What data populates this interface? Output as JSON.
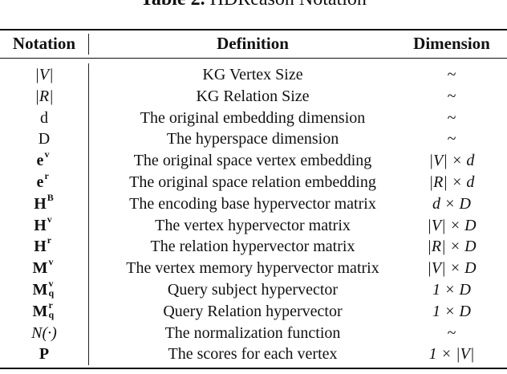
{
  "caption": {
    "label": "Table 2.",
    "text": "HDReason Notation"
  },
  "headers": [
    "Notation",
    "Definition",
    "Dimension"
  ],
  "rows": [
    {
      "notation": {
        "base": "|V|",
        "sup": "",
        "sub": "",
        "style": "italic"
      },
      "definition": "KG Vertex Size",
      "dimension": "~"
    },
    {
      "notation": {
        "base": "|R|",
        "sup": "",
        "sub": "",
        "style": "italic"
      },
      "definition": "KG Relation Size",
      "dimension": "~"
    },
    {
      "notation": {
        "base": "d",
        "sup": "",
        "sub": "",
        "style": "normal"
      },
      "definition": "The original embedding dimension",
      "dimension": "~"
    },
    {
      "notation": {
        "base": "D",
        "sup": "",
        "sub": "",
        "style": "normal"
      },
      "definition": "The hyperspace dimension",
      "dimension": "~"
    },
    {
      "notation": {
        "base": "e",
        "sup": "v",
        "sub": "",
        "style": "bold"
      },
      "definition": "The original space vertex embedding",
      "dimension": "|V| × d"
    },
    {
      "notation": {
        "base": "e",
        "sup": "r",
        "sub": "",
        "style": "bold"
      },
      "definition": "The original space relation embedding",
      "dimension": "|R| × d"
    },
    {
      "notation": {
        "base": "H",
        "sup": "B",
        "sub": "",
        "style": "bold"
      },
      "definition": "The encoding base hypervector matrix",
      "dimension": "d × D"
    },
    {
      "notation": {
        "base": "H",
        "sup": "v",
        "sub": "",
        "style": "bold"
      },
      "definition": "The vertex hypervector matrix",
      "dimension": "|V| × D"
    },
    {
      "notation": {
        "base": "H",
        "sup": "r",
        "sub": "",
        "style": "bold"
      },
      "definition": "The relation hypervector matrix",
      "dimension": "|R| × D"
    },
    {
      "notation": {
        "base": "M",
        "sup": "v",
        "sub": "",
        "style": "bold"
      },
      "definition": "The vertex memory hypervector matrix",
      "dimension": "|V| × D"
    },
    {
      "notation": {
        "base": "M",
        "sup": "v",
        "sub": "q",
        "style": "bold"
      },
      "definition": "Query subject hypervector",
      "dimension": "1 × D"
    },
    {
      "notation": {
        "base": "M",
        "sup": "r",
        "sub": "q",
        "style": "bold"
      },
      "definition": "Query Relation hypervector",
      "dimension": "1 × D"
    },
    {
      "notation": {
        "base": "N(·)",
        "sup": "",
        "sub": "",
        "style": "italic"
      },
      "definition": "The normalization function",
      "dimension": "~"
    },
    {
      "notation": {
        "base": "P",
        "sup": "",
        "sub": "",
        "style": "bold"
      },
      "definition": "The scores for each vertex",
      "dimension": "1 × |V|"
    }
  ]
}
